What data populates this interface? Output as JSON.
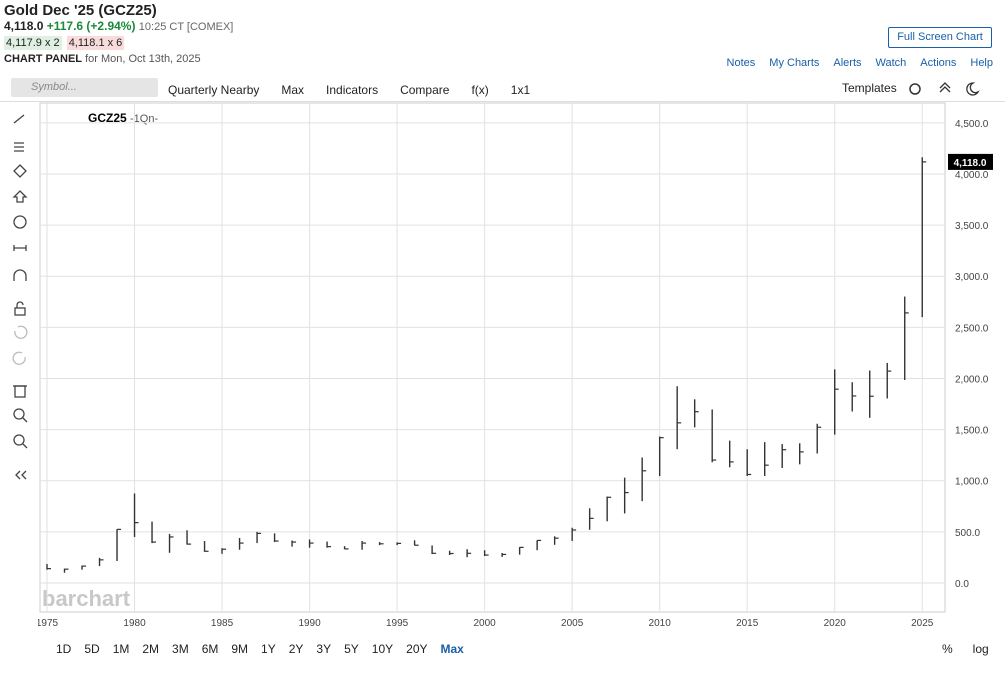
{
  "header": {
    "title": "Gold Dec '25 (GCZ25)",
    "last": "4,118.0",
    "change": "+117.6 (+2.94%)",
    "time": "10:25 CT [COMEX]",
    "bid": "4,117.9 x 2",
    "ask": "4,118.1 x 6",
    "panel": "CHART PANEL",
    "panel_date": "for Mon, Oct 13th, 2025",
    "full_screen": "Full Screen Chart",
    "links": [
      "Notes",
      "My Charts",
      "Alerts",
      "Watch",
      "Actions",
      "Help"
    ]
  },
  "toolbar": {
    "symbol_placeholder": "Symbol...",
    "items": [
      "Quarterly Nearby",
      "Max",
      "Indicators",
      "Compare",
      "f(x)",
      "1x1"
    ],
    "templates": "Templates"
  },
  "chart_data": {
    "type": "ohlc",
    "symbol": "GCZ25",
    "period": "-1Qn-",
    "watermark": "barchart",
    "color": "#333333",
    "x": [
      1975,
      1976,
      1977,
      1978,
      1979,
      1980,
      1981,
      1982,
      1983,
      1984,
      1985,
      1986,
      1987,
      1988,
      1989,
      1990,
      1991,
      1992,
      1993,
      1994,
      1995,
      1996,
      1997,
      1998,
      1999,
      2000,
      2001,
      2002,
      2003,
      2004,
      2005,
      2006,
      2007,
      2008,
      2009,
      2010,
      2011,
      2012,
      2013,
      2014,
      2015,
      2016,
      2017,
      2018,
      2019,
      2020,
      2021,
      2022,
      2023,
      2024,
      2025
    ],
    "low": [
      130,
      100,
      130,
      165,
      215,
      450,
      390,
      295,
      375,
      305,
      285,
      325,
      390,
      400,
      355,
      345,
      345,
      330,
      325,
      370,
      370,
      367,
      283,
      273,
      252,
      264,
      255,
      277,
      320,
      373,
      411,
      520,
      603,
      680,
      800,
      1045,
      1308,
      1522,
      1180,
      1131,
      1046,
      1046,
      1124,
      1160,
      1266,
      1451,
      1677,
      1615,
      1804,
      1985,
      2600
    ],
    "high": [
      185,
      140,
      170,
      245,
      525,
      875,
      600,
      480,
      515,
      410,
      340,
      440,
      500,
      485,
      415,
      425,
      405,
      360,
      410,
      400,
      397,
      417,
      367,
      315,
      330,
      320,
      293,
      350,
      417,
      456,
      540,
      730,
      845,
      1030,
      1227,
      1432,
      1924,
      1796,
      1697,
      1392,
      1308,
      1377,
      1358,
      1366,
      1557,
      2089,
      1963,
      2078,
      2152,
      2801,
      4163
    ],
    "close": [
      140,
      135,
      165,
      226,
      524,
      590,
      400,
      450,
      380,
      310,
      330,
      390,
      485,
      410,
      400,
      390,
      355,
      333,
      390,
      383,
      387,
      369,
      290,
      288,
      290,
      273,
      279,
      348,
      416,
      438,
      518,
      632,
      838,
      884,
      1097,
      1421,
      1566,
      1675,
      1202,
      1184,
      1061,
      1152,
      1303,
      1282,
      1523,
      1895,
      1829,
      1826,
      2072,
      2641,
      4118
    ],
    "xlim": [
      1974.6,
      2026.3
    ],
    "xticks": [
      1975,
      1980,
      1985,
      1990,
      1995,
      2000,
      2005,
      2010,
      2015,
      2020,
      2025
    ],
    "ylim": [
      -284,
      4694
    ],
    "yticks": [
      {
        "value": 0,
        "label": "0.0"
      },
      {
        "value": 500,
        "label": "500.0"
      },
      {
        "value": 1000,
        "label": "1,000.0"
      },
      {
        "value": 1500,
        "label": "1,500.0"
      },
      {
        "value": 2000,
        "label": "2,000.0"
      },
      {
        "value": 2500,
        "label": "2,500.0"
      },
      {
        "value": 3000,
        "label": "3,000.0"
      },
      {
        "value": 3500,
        "label": "3,500.0"
      },
      {
        "value": 4000,
        "label": "4,000.0"
      },
      {
        "value": 4500,
        "label": "4,500.0"
      }
    ],
    "last_price": {
      "value": 4118,
      "label": "4,118.0"
    },
    "grid": true
  },
  "timeframes": [
    "1D",
    "5D",
    "1M",
    "2M",
    "3M",
    "6M",
    "9M",
    "1Y",
    "2Y",
    "3Y",
    "5Y",
    "10Y",
    "20Y",
    "Max"
  ],
  "scale_options": [
    "%",
    "log"
  ]
}
